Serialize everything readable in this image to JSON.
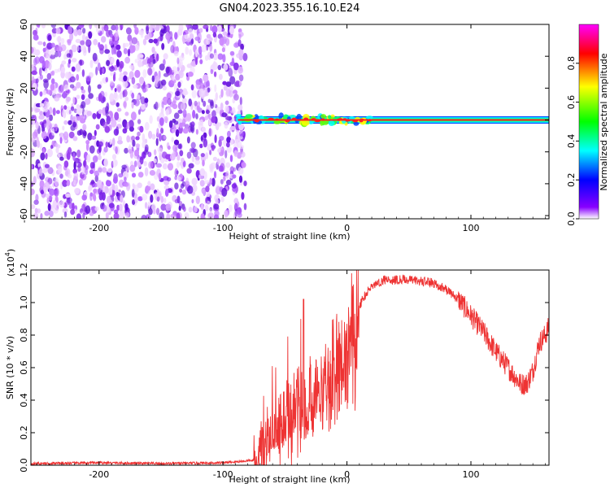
{
  "title": "GN04.2023.355.16.10.E24",
  "colors": {
    "snr_line": "#ee3333",
    "noise": "#8a2be2",
    "colorbar": [
      "#ff00ff",
      "#ff0000",
      "#ffff00",
      "#00ff00",
      "#00ffff",
      "#0000ff",
      "#8800ff",
      "#ffffff"
    ]
  },
  "chart_data": [
    {
      "type": "heatmap",
      "xlabel": "Height of straight line (km)",
      "ylabel": "Frequency (Hz)",
      "xlim": [
        -255,
        163
      ],
      "ylim": [
        -62,
        60
      ],
      "x_ticks": [
        -200,
        -100,
        0,
        100
      ],
      "y_ticks": [
        -60,
        -40,
        -20,
        0,
        20,
        40,
        60
      ],
      "noise_region_x": [
        -255,
        -82
      ],
      "signal_region_x": [
        -88,
        163
      ],
      "signal_center_frequency": 0,
      "colorbar": {
        "label": "Normalized spectral amplitude",
        "range": [
          0,
          1
        ],
        "ticks": [
          "0.0",
          "0.2",
          "0.4",
          "0.6",
          "0.8"
        ]
      }
    },
    {
      "type": "line",
      "xlabel": "Height of straight line (km)",
      "ylabel": "SNR (10 * v/v)",
      "y_multiplier": "(x10",
      "y_multiplier_exp": "4",
      "xlim": [
        -255,
        163
      ],
      "ylim": [
        0,
        1.2
      ],
      "x_ticks": [
        -200,
        -100,
        0,
        100
      ],
      "y_ticks": [
        "0.0",
        "0.2",
        "0.4",
        "0.6",
        "0.8",
        "1.0",
        "1.2"
      ],
      "series": [
        {
          "x": [
            -255,
            -200,
            -150,
            -100,
            -75,
            -65,
            -60,
            -55,
            -50,
            -45,
            -40,
            -35,
            -30,
            -25,
            -20,
            -15,
            -10,
            -5,
            0,
            5,
            10,
            15,
            20,
            25,
            30,
            40,
            50,
            60,
            70,
            80,
            90,
            100,
            110,
            120,
            130,
            140,
            145,
            150,
            155,
            160,
            163
          ],
          "y": [
            0.01,
            0.015,
            0.01,
            0.015,
            0.03,
            0.12,
            0.2,
            0.24,
            0.3,
            0.34,
            0.37,
            0.4,
            0.44,
            0.5,
            0.56,
            0.6,
            0.68,
            0.75,
            0.82,
            0.9,
            0.98,
            1.05,
            1.1,
            1.12,
            1.14,
            1.14,
            1.14,
            1.13,
            1.12,
            1.08,
            1.02,
            0.92,
            0.82,
            0.7,
            0.6,
            0.5,
            0.5,
            0.58,
            0.75,
            0.8,
            0.85
          ]
        }
      ]
    }
  ]
}
